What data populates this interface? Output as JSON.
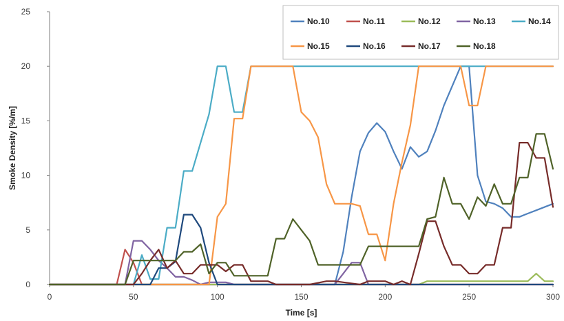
{
  "chart_data": {
    "type": "line",
    "title": "",
    "xlabel": "Time [s]",
    "ylabel": "Smoke Density [%/m]",
    "xlim": [
      0,
      300
    ],
    "ylim": [
      0,
      25
    ],
    "xticks": [
      0,
      50,
      100,
      150,
      200,
      250,
      300
    ],
    "yticks": [
      0,
      5,
      10,
      15,
      20,
      25
    ],
    "grid": false,
    "legend_position": "top-right",
    "series": [
      {
        "name": "No.10",
        "color": "#4F81BD",
        "x": [
          0,
          170,
          175,
          180,
          185,
          190,
          195,
          200,
          205,
          210,
          215,
          220,
          225,
          230,
          235,
          240,
          245,
          250,
          255,
          260,
          265,
          270,
          275,
          280,
          285,
          290,
          300
        ],
        "y": [
          0,
          0,
          3,
          8,
          12.2,
          13.9,
          14.8,
          14,
          12.2,
          10.6,
          12.6,
          11.7,
          12.2,
          14.1,
          16.4,
          18.2,
          20,
          20,
          10,
          7.6,
          7.4,
          7,
          6.2,
          6.2,
          6.5,
          6.8,
          7.4
        ]
      },
      {
        "name": "No.11",
        "color": "#C0504D",
        "x": [
          0,
          40,
          45,
          50,
          55,
          60,
          300
        ],
        "y": [
          0,
          0,
          3.2,
          2,
          0,
          0,
          0
        ]
      },
      {
        "name": "No.12",
        "color": "#9BBB59",
        "x": [
          0,
          220,
          225,
          230,
          285,
          290,
          295,
          300
        ],
        "y": [
          0,
          0,
          0.3,
          0.3,
          0.3,
          1,
          0.3,
          0.3
        ]
      },
      {
        "name": "No.13",
        "color": "#8064A2",
        "x": [
          0,
          45,
          50,
          55,
          60,
          65,
          70,
          75,
          80,
          85,
          90,
          95,
          100,
          105,
          110,
          170,
          175,
          180,
          185,
          190,
          300
        ],
        "y": [
          0,
          0,
          4,
          4,
          3.2,
          2.2,
          1.5,
          0.7,
          0.7,
          0.4,
          0,
          0.2,
          0.2,
          0.2,
          0,
          0,
          1,
          2,
          2,
          0,
          0
        ]
      },
      {
        "name": "No.14",
        "color": "#4BACC6",
        "x": [
          0,
          50,
          55,
          60,
          65,
          70,
          75,
          80,
          85,
          90,
          95,
          100,
          105,
          110,
          115,
          120,
          260,
          265,
          300
        ],
        "y": [
          0,
          0,
          2.7,
          0.5,
          0.5,
          5.2,
          5.2,
          10.4,
          10.4,
          13,
          15.6,
          20,
          20,
          15.8,
          15.8,
          20,
          20,
          20,
          20
        ]
      },
      {
        "name": "No.15",
        "color": "#F79646",
        "x": [
          0,
          95,
          100,
          105,
          110,
          115,
          120,
          145,
          150,
          155,
          160,
          165,
          170,
          175,
          180,
          185,
          190,
          195,
          200,
          205,
          210,
          215,
          220,
          245,
          250,
          255,
          260,
          300
        ],
        "y": [
          0,
          0,
          6.2,
          7.4,
          15.2,
          15.2,
          20,
          20,
          15.8,
          15,
          13.5,
          9.2,
          7.4,
          7.4,
          7.4,
          7.2,
          4.6,
          4.6,
          2.2,
          7.4,
          11.2,
          14.6,
          20,
          20,
          16.4,
          16.4,
          20,
          20
        ]
      },
      {
        "name": "No.16",
        "color": "#1F497D",
        "x": [
          0,
          60,
          65,
          70,
          75,
          80,
          85,
          90,
          95,
          100,
          300
        ],
        "y": [
          0,
          0,
          1.5,
          1.5,
          2.1,
          6.4,
          6.4,
          5.2,
          2,
          0,
          0
        ]
      },
      {
        "name": "No.17",
        "color": "#772C2A",
        "x": [
          0,
          50,
          55,
          60,
          65,
          70,
          75,
          80,
          85,
          90,
          95,
          100,
          105,
          110,
          115,
          120,
          130,
          135,
          155,
          165,
          170,
          185,
          190,
          195,
          200,
          205,
          210,
          215,
          220,
          225,
          230,
          235,
          240,
          245,
          250,
          255,
          260,
          265,
          270,
          275,
          280,
          285,
          290,
          295,
          300
        ],
        "y": [
          0,
          0,
          1,
          2.2,
          3.2,
          1.5,
          2.2,
          1,
          1,
          1.8,
          1.8,
          1.8,
          1.2,
          1.8,
          1.8,
          0.3,
          0.3,
          0,
          0,
          0.3,
          0.3,
          0,
          0.3,
          0.3,
          0.3,
          0,
          0.3,
          0,
          2.8,
          5.8,
          5.8,
          3.5,
          1.8,
          1.8,
          1,
          1,
          1.8,
          1.8,
          5.2,
          5.2,
          13,
          13,
          11.6,
          11.6,
          7.1
        ]
      },
      {
        "name": "No.18",
        "color": "#4F6228",
        "x": [
          0,
          45,
          50,
          75,
          80,
          85,
          90,
          95,
          100,
          105,
          110,
          130,
          135,
          140,
          145,
          150,
          155,
          160,
          165,
          185,
          190,
          220,
          225,
          230,
          235,
          240,
          245,
          250,
          255,
          260,
          265,
          270,
          275,
          280,
          285,
          290,
          295,
          300
        ],
        "y": [
          0,
          0,
          2.2,
          2.2,
          3,
          3,
          3.7,
          1,
          2,
          2,
          0.8,
          0.8,
          4.2,
          4.2,
          6,
          5,
          4,
          1.8,
          1.8,
          1.8,
          3.5,
          3.5,
          6,
          6.2,
          9.8,
          7.4,
          7.4,
          6,
          8,
          7.2,
          9.2,
          7.4,
          7.4,
          9.8,
          9.8,
          13.8,
          13.8,
          10.6
        ]
      }
    ]
  }
}
